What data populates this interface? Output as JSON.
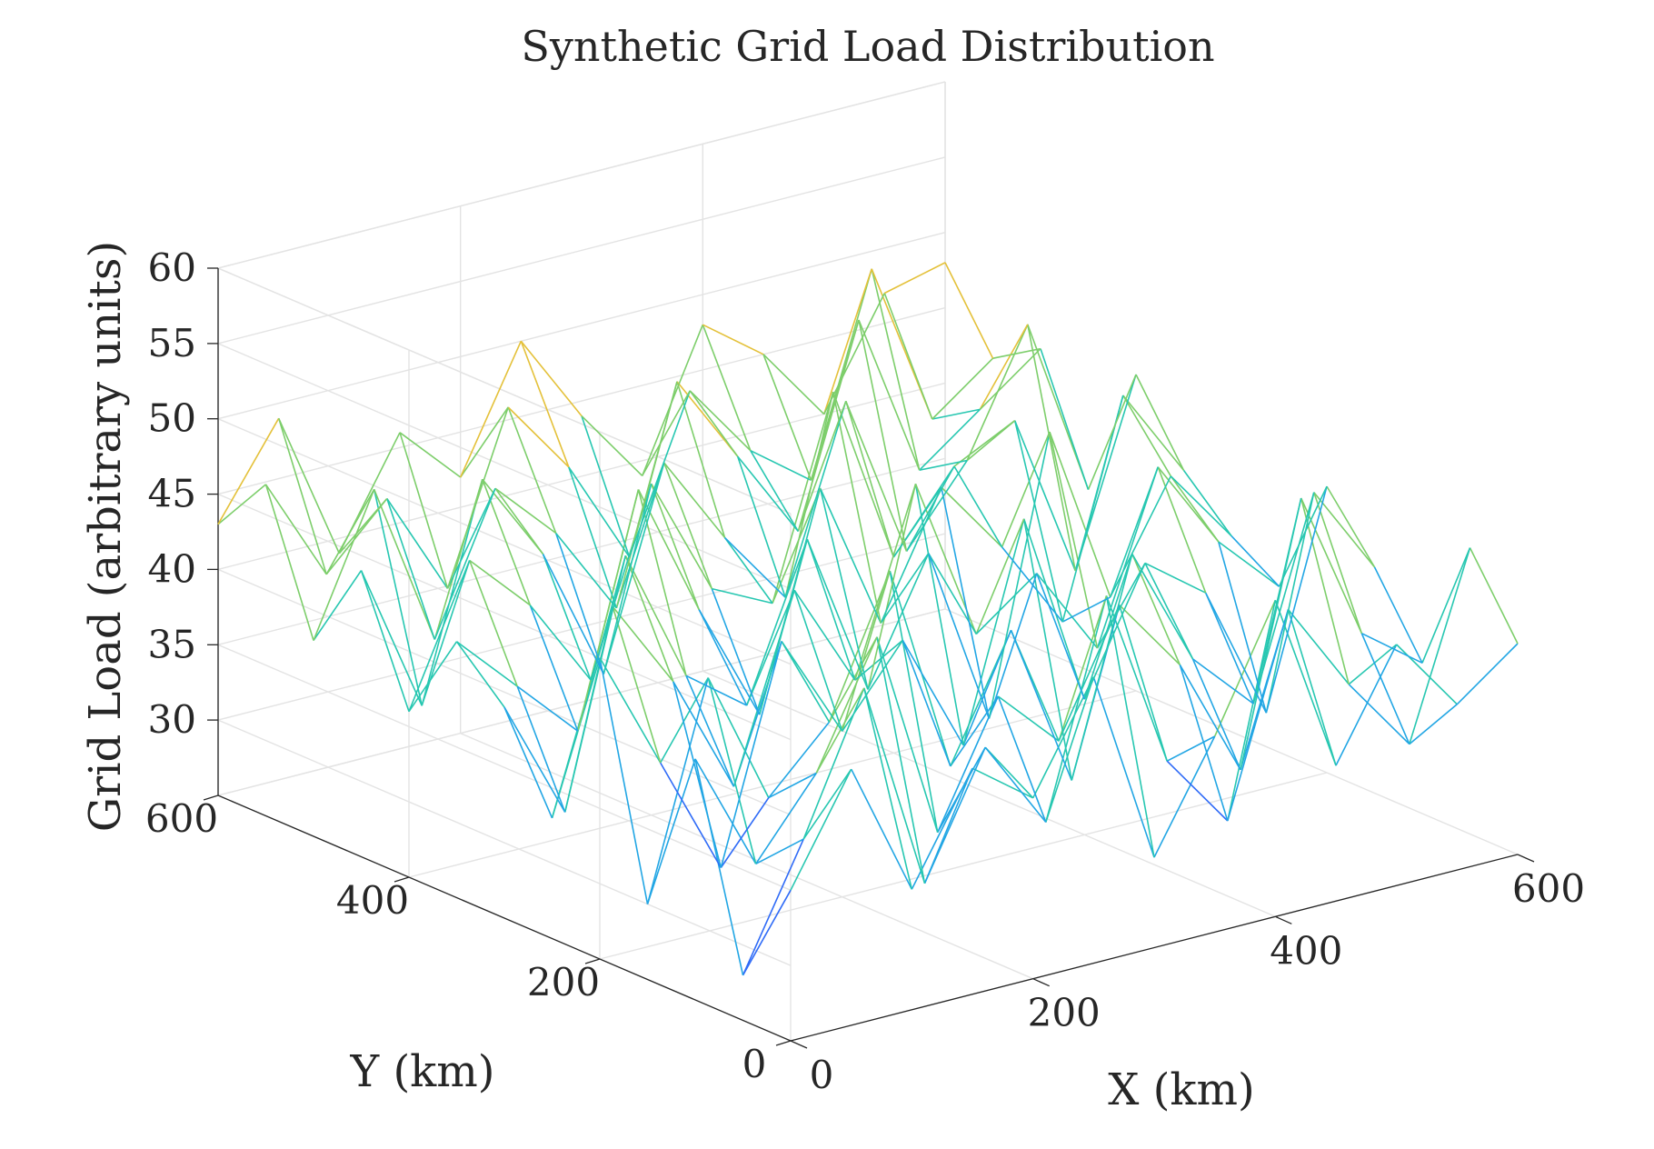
{
  "chart_data": {
    "type": "mesh",
    "title": "Synthetic Grid Load Distribution",
    "xlabel": "X (km)",
    "ylabel": "Y (km)",
    "zlabel": "Grid Load (arbitrary units)",
    "xlim": [
      0,
      600
    ],
    "ylim": [
      0,
      600
    ],
    "zlim": [
      25,
      60
    ],
    "xticks": [
      "0",
      "200",
      "400",
      "600"
    ],
    "yticks": [
      "0",
      "200",
      "400",
      "600"
    ],
    "zticks": [
      "30",
      "35",
      "40",
      "45",
      "50",
      "55",
      "60"
    ],
    "zticks_values": [
      30,
      35,
      40,
      45,
      50,
      55,
      60
    ],
    "xticks_values": [
      0,
      200,
      400,
      600
    ],
    "yticks_values": [
      0,
      200,
      400,
      600
    ],
    "grid": true,
    "colormap": "parula",
    "colors": [
      "#3e26a8",
      "#2f6bf7",
      "#22a6e4",
      "#27c7b1",
      "#7dce6b",
      "#e4c13a",
      "#f9fb0e"
    ],
    "grid_x": [
      0,
      50,
      100,
      150,
      200,
      250,
      300,
      350,
      400,
      450,
      500,
      550,
      600
    ],
    "grid_y": [
      0,
      50,
      100,
      150,
      200,
      250,
      300,
      350,
      400,
      450,
      500,
      550,
      600
    ],
    "z": [
      [
        35,
        42,
        33,
        40,
        37,
        44,
        31,
        38,
        46,
        34,
        41,
        36,
        39
      ],
      [
        28,
        36,
        45,
        31,
        39,
        33,
        47,
        35,
        30,
        43,
        37,
        32,
        44
      ],
      [
        41,
        33,
        38,
        46,
        32,
        40,
        36,
        44,
        39,
        31,
        48,
        38,
        35
      ],
      [
        30,
        44,
        35,
        39,
        48,
        34,
        42,
        31,
        45,
        37,
        33,
        46,
        40
      ],
      [
        45,
        37,
        29,
        43,
        36,
        41,
        33,
        47,
        34,
        42,
        39,
        30,
        44
      ],
      [
        33,
        46,
        40,
        32,
        44,
        37,
        49,
        38,
        41,
        35,
        46,
        40,
        36
      ],
      [
        39,
        31,
        47,
        38,
        35,
        45,
        34,
        42,
        30,
        48,
        36,
        43,
        38
      ],
      [
        42,
        38,
        34,
        49,
        40,
        32,
        46,
        36,
        44,
        39,
        33,
        47,
        41
      ],
      [
        36,
        45,
        41,
        35,
        47,
        39,
        37,
        50,
        38,
        43,
        45,
        34,
        46
      ],
      [
        44,
        34,
        48,
        42,
        33,
        46,
        40,
        35,
        47,
        36,
        41,
        49,
        37
      ],
      [
        38,
        47,
        36,
        45,
        41,
        35,
        49,
        43,
        37,
        50,
        39,
        42,
        45
      ],
      [
        47,
        40,
        44,
        37,
        48,
        43,
        36,
        46,
        41,
        38,
        51,
        40,
        43
      ],
      [
        43,
        49,
        39,
        46,
        42,
        50,
        44,
        39,
        48,
        45,
        40,
        47,
        48
      ]
    ]
  }
}
